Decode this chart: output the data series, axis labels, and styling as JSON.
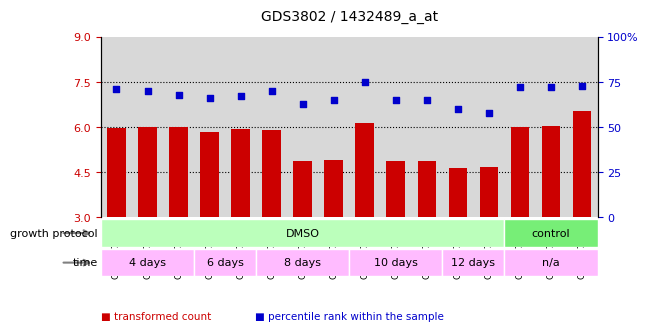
{
  "title": "GDS3802 / 1432489_a_at",
  "samples": [
    "GSM447355",
    "GSM447356",
    "GSM447357",
    "GSM447358",
    "GSM447359",
    "GSM447360",
    "GSM447361",
    "GSM447362",
    "GSM447363",
    "GSM447364",
    "GSM447365",
    "GSM447366",
    "GSM447367",
    "GSM447352",
    "GSM447353",
    "GSM447354"
  ],
  "bar_values": [
    5.98,
    5.99,
    5.99,
    5.82,
    5.92,
    5.91,
    4.88,
    4.92,
    6.12,
    4.88,
    4.88,
    4.65,
    4.67,
    6.01,
    6.05,
    6.55
  ],
  "dot_values": [
    71,
    70,
    68,
    66,
    67,
    70,
    63,
    65,
    75,
    65,
    65,
    60,
    58,
    72,
    72,
    73
  ],
  "ylim_left": [
    3,
    9
  ],
  "ylim_right": [
    0,
    100
  ],
  "yticks_left": [
    3,
    4.5,
    6,
    7.5,
    9
  ],
  "yticks_right": [
    0,
    25,
    50,
    75,
    100
  ],
  "bar_color": "#cc0000",
  "dot_color": "#0000cc",
  "hline_values": [
    4.5,
    6.0,
    7.5
  ],
  "growth_protocol_groups": [
    {
      "label": "DMSO",
      "start": 0,
      "end": 13,
      "color": "#bbffbb"
    },
    {
      "label": "control",
      "start": 13,
      "end": 16,
      "color": "#77ee77"
    }
  ],
  "time_groups": [
    {
      "label": "4 days",
      "start": 0,
      "end": 3,
      "color": "#ffbbff"
    },
    {
      "label": "6 days",
      "start": 3,
      "end": 5,
      "color": "#ffbbff"
    },
    {
      "label": "8 days",
      "start": 5,
      "end": 8,
      "color": "#ffbbff"
    },
    {
      "label": "10 days",
      "start": 8,
      "end": 11,
      "color": "#ffbbff"
    },
    {
      "label": "12 days",
      "start": 11,
      "end": 13,
      "color": "#ffbbff"
    },
    {
      "label": "n/a",
      "start": 13,
      "end": 16,
      "color": "#ffbbff"
    }
  ],
  "legend_items": [
    {
      "label": "transformed count",
      "color": "#cc0000"
    },
    {
      "label": "percentile rank within the sample",
      "color": "#0000cc"
    }
  ],
  "bar_width": 0.6,
  "left_tick_color": "#cc0000",
  "right_tick_color": "#0000cc",
  "tick_bg_color": "#d8d8d8",
  "plot_area_color": "#ffffff"
}
